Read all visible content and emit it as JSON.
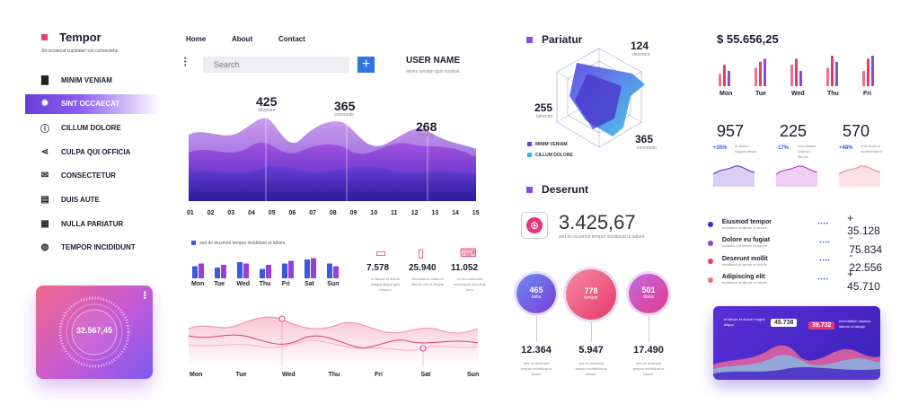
{
  "brand": {
    "name": "Tempor",
    "subtitle": "Sit occaecat cupidatat non consectetur"
  },
  "sidebar": {
    "items": [
      {
        "label": "MINIM VENIAM",
        "icon": "briefcase-icon"
      },
      {
        "label": "SINT OCCAECAT",
        "icon": "gear-icon"
      },
      {
        "label": "CILLUM DOLORE",
        "icon": "info-icon"
      },
      {
        "label": "CULPA QUI OFFICIA",
        "icon": "share-icon"
      },
      {
        "label": "CONSECTETUR",
        "icon": "mail-icon"
      },
      {
        "label": "DUIS AUTE",
        "icon": "list-icon"
      },
      {
        "label": "NULLA PARIATUR",
        "icon": "calculator-icon"
      },
      {
        "label": "TEMPOR INCIDIDUNT",
        "icon": "globe-icon"
      }
    ]
  },
  "gauge_card": {
    "value": "32.567,45"
  },
  "topnav": {
    "links": [
      "Home",
      "About",
      "Contact"
    ]
  },
  "search": {
    "placeholder": "Search"
  },
  "user": {
    "name": "USER NAME",
    "subtitle": "minim veniam quis nostrud"
  },
  "wave_chart": {
    "callouts": [
      {
        "value": "425",
        "label": "deserunt"
      },
      {
        "value": "365",
        "label": "commodo"
      },
      {
        "value": "268",
        "label": "laborum"
      }
    ],
    "x_labels": [
      "01",
      "02",
      "03",
      "04",
      "05",
      "06",
      "07",
      "08",
      "09",
      "10",
      "11",
      "12",
      "13",
      "14",
      "15"
    ]
  },
  "bar_section": {
    "legend": "sed do eiusmod tempor incididunt ut labore",
    "days": [
      "Mon",
      "Tue",
      "Wed",
      "Thu",
      "Fri",
      "Sat",
      "Sun"
    ],
    "bars": [
      [
        0.45,
        0.55
      ],
      [
        0.4,
        0.5
      ],
      [
        0.6,
        0.55
      ],
      [
        0.35,
        0.5
      ],
      [
        0.55,
        0.65
      ],
      [
        0.7,
        0.75
      ],
      [
        0.55,
        0.45
      ]
    ]
  },
  "devices": [
    {
      "value": "7.578",
      "icon": "monitor-icon",
      "text": "ut labore et dolore magna aliqua quis nostrud"
    },
    {
      "value": "25.940",
      "icon": "phone-icon",
      "text": "exercitation ullamco laboris nisi ut aliquip"
    },
    {
      "value": "11.052",
      "icon": "laptop-icon",
      "text": "ex ea commodo consequat duis aute irure"
    }
  ],
  "line_chart": {
    "days": [
      "Mon",
      "Tue",
      "Wed",
      "Thu",
      "Fri",
      "Sat",
      "Sun"
    ]
  },
  "radar": {
    "title": "Pariatur",
    "callouts": [
      {
        "value": "124",
        "label": "deserunt"
      },
      {
        "value": "255",
        "label": "laborum"
      },
      {
        "value": "365",
        "label": "commodo"
      }
    ],
    "legend": [
      "MINIM VENIAM",
      "CILLUM DOLORE"
    ]
  },
  "deserunt": {
    "title": "Deserunt",
    "value": "3.425,67",
    "caption": "sed do eiusmod tempor incididunt ut labore"
  },
  "bubbles": [
    {
      "value": "465",
      "label": "nulla",
      "total": "12.364",
      "text": "sed do eiusmod tempor incididunt ut labore"
    },
    {
      "value": "778",
      "label": "tempor",
      "total": "5.947",
      "text": "sed do eiusmod tempor incididunt ut labore"
    },
    {
      "value": "501",
      "label": "dolus",
      "total": "17.490",
      "text": "sed do eiusmod tempor incididunt ut labore"
    }
  ],
  "revenue": {
    "total": "$ 55.656,25",
    "days": [
      "Mon",
      "Tue",
      "Wed",
      "Thu",
      "Fri"
    ],
    "bars": [
      [
        0.4,
        0.7,
        0.5
      ],
      [
        0.6,
        0.8,
        0.9
      ],
      [
        0.7,
        0.9,
        0.5
      ],
      [
        0.6,
        1.0,
        0.8
      ],
      [
        0.5,
        0.9,
        1.0
      ]
    ]
  },
  "stats": [
    {
      "value": "957",
      "pct": "+35%",
      "text": "ut dolore magna aliqua",
      "color": "#2f5bea"
    },
    {
      "value": "225",
      "pct": "-17%",
      "text": "exercitation ullamco laboris",
      "color": "#2f5bea"
    },
    {
      "value": "570",
      "pct": "+48%",
      "text": "irure dolor in reprehenderit",
      "color": "#2f5bea"
    }
  ],
  "list": [
    {
      "label": "Eiusmod tempor",
      "sub": "incididunt ut labore et dolore",
      "amount": "+ 35.128",
      "color": "#3a2bd0"
    },
    {
      "label": "Dolore eu fugiat",
      "sub": "incididunt ut labore et dolore",
      "amount": "- 75.834",
      "color": "#9b3fd8"
    },
    {
      "label": "Deserunt mollit",
      "sub": "incididunt ut labore et dolore",
      "amount": "- 22.556",
      "color": "#e4387a"
    },
    {
      "label": "Adipiscing elit",
      "sub": "incididunt ut labore et dolore",
      "amount": "+ 45.710",
      "color": "#f07070"
    }
  ],
  "area_card": {
    "callouts": [
      {
        "value": "45.738",
        "text": "ut labore et dolore magna aliqua"
      },
      {
        "value": "39.732",
        "text": "exercitation ullamco laboris ut aliquip"
      }
    ]
  }
}
